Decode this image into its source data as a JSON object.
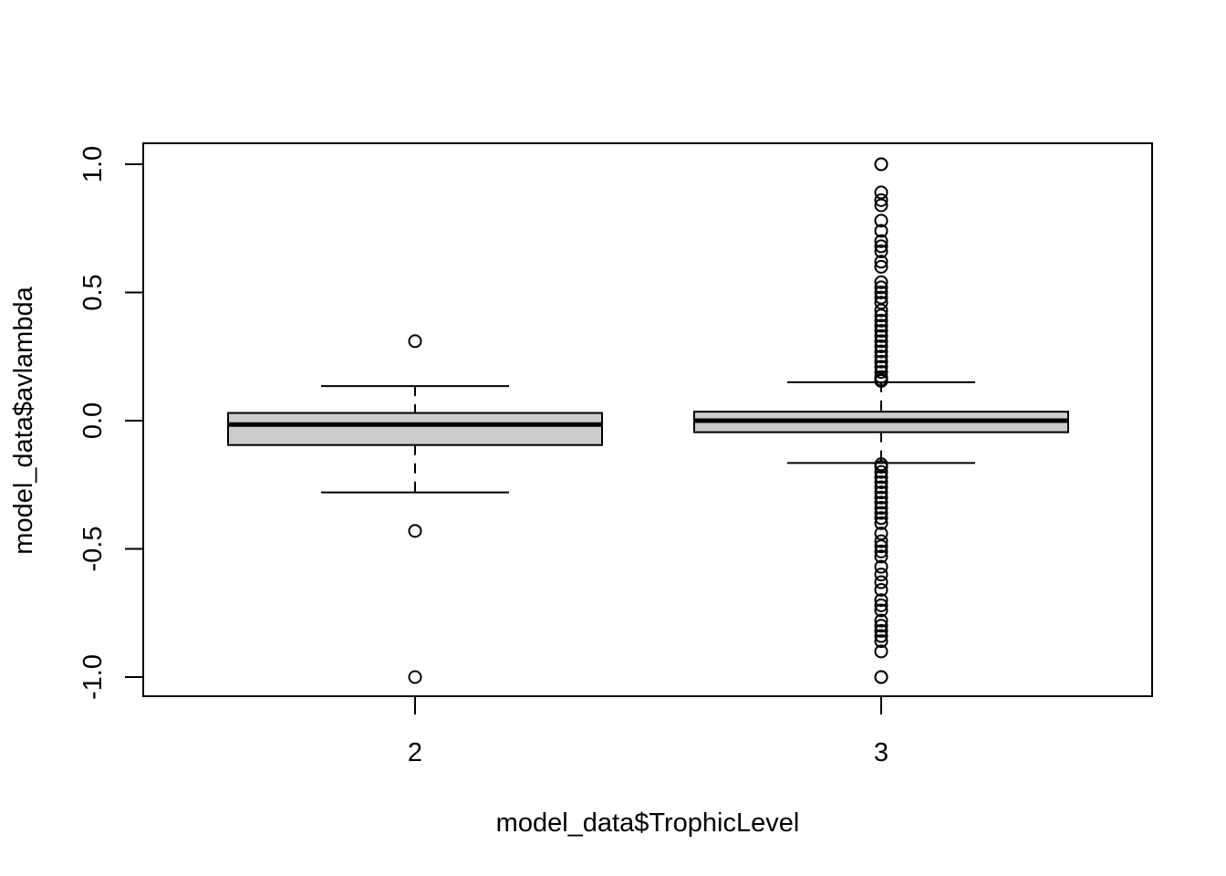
{
  "chart_data": {
    "type": "box",
    "title": "",
    "xlabel": "model_data$TrophicLevel",
    "ylabel": "model_data$avlambda",
    "ylim": [
      -1.08,
      1.08
    ],
    "yticks": [
      "-1.0",
      "-0.5",
      "0.0",
      "0.5",
      "1.0"
    ],
    "grid": false,
    "legend": "none",
    "box_fill": "#cccccc",
    "groups": [
      {
        "label": "2",
        "q1": -0.095,
        "median": -0.015,
        "q3": 0.03,
        "whisker_low": -0.28,
        "whisker_high": 0.135,
        "outliers": [
          0.31,
          -0.43,
          -1.0
        ]
      },
      {
        "label": "3",
        "q1": -0.045,
        "median": 0.0,
        "q3": 0.035,
        "whisker_low": -0.165,
        "whisker_high": 0.15,
        "outliers": [
          1.0,
          1.0,
          0.89,
          0.86,
          0.84,
          0.78,
          0.74,
          0.7,
          0.68,
          0.66,
          0.62,
          0.6,
          0.54,
          0.52,
          0.5,
          0.48,
          0.46,
          0.43,
          0.41,
          0.39,
          0.37,
          0.35,
          0.33,
          0.31,
          0.29,
          0.27,
          0.25,
          0.23,
          0.21,
          0.19,
          0.17,
          0.16,
          0.155,
          -0.17,
          -0.18,
          -0.2,
          -0.22,
          -0.24,
          -0.26,
          -0.28,
          -0.3,
          -0.32,
          -0.34,
          -0.36,
          -0.38,
          -0.4,
          -0.44,
          -0.47,
          -0.49,
          -0.51,
          -0.53,
          -0.57,
          -0.6,
          -0.63,
          -0.66,
          -0.7,
          -0.72,
          -0.74,
          -0.78,
          -0.8,
          -0.82,
          -0.84,
          -0.86,
          -0.9,
          -1.0,
          -1.0
        ]
      }
    ]
  }
}
